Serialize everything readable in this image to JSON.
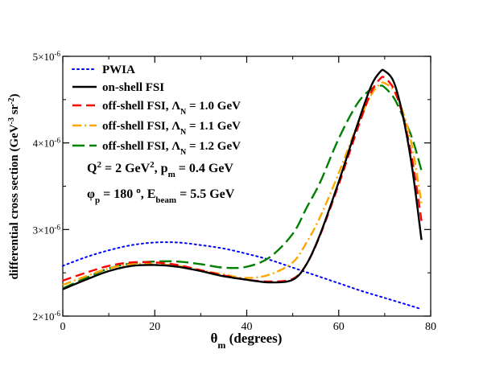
{
  "chart_data": {
    "type": "line",
    "xlabel": {
      "main": "θ",
      "sub": "m",
      "rest": " (degrees)"
    },
    "ylabel": {
      "text": "differential cross section (GeV",
      "sup1": "-3",
      "mid": " sr",
      "sup2": "-2",
      "end": ")"
    },
    "xlim": [
      0,
      80
    ],
    "ylim": [
      2e-06,
      5e-06
    ],
    "grid": false,
    "legend_position": "top-left",
    "xticks": [
      {
        "value": 0,
        "label": "0"
      },
      {
        "value": 20,
        "label": "20"
      },
      {
        "value": 40,
        "label": "40"
      },
      {
        "value": 60,
        "label": "60"
      },
      {
        "value": 80,
        "label": "80"
      }
    ],
    "yticks": [
      {
        "value": 2e-06,
        "base": "2×10",
        "exp": "-6"
      },
      {
        "value": 3e-06,
        "base": "3×10",
        "exp": "-6"
      },
      {
        "value": 4e-06,
        "base": "4×10",
        "exp": "-6"
      },
      {
        "value": 5e-06,
        "base": "5×10",
        "exp": "-6"
      }
    ],
    "annotations": [
      {
        "parts": [
          [
            "Q",
            ""
          ],
          [
            "2",
            "sup"
          ],
          [
            " = 2 GeV",
            ""
          ],
          [
            "2",
            "sup"
          ],
          [
            ", p",
            ""
          ],
          [
            "m",
            "sub"
          ],
          [
            " = 0.4 GeV",
            ""
          ]
        ]
      },
      {
        "parts": [
          [
            "φ",
            ""
          ],
          [
            "p",
            "sub"
          ],
          [
            " = 180 ",
            ""
          ],
          [
            "o",
            "sup"
          ],
          [
            ", E",
            ""
          ],
          [
            "beam",
            "sub"
          ],
          [
            " = 5.5 GeV",
            ""
          ]
        ]
      }
    ],
    "series": [
      {
        "name": [
          [
            "PWIA",
            ""
          ]
        ],
        "color": "#0000ff",
        "dash": "dotted",
        "width": 2,
        "x": [
          0,
          5,
          10,
          15,
          20,
          25,
          30,
          35,
          40,
          45,
          50,
          55,
          60,
          65,
          70,
          75,
          78
        ],
        "y": [
          2.58e-06,
          2.68e-06,
          2.76e-06,
          2.82e-06,
          2.85e-06,
          2.85e-06,
          2.82e-06,
          2.78e-06,
          2.72e-06,
          2.65e-06,
          2.56e-06,
          2.47e-06,
          2.38e-06,
          2.29e-06,
          2.21e-06,
          2.13e-06,
          2.08e-06
        ]
      },
      {
        "name": [
          [
            "on-shell FSI",
            ""
          ]
        ],
        "color": "#000000",
        "dash": "solid",
        "width": 2.4,
        "x": [
          0,
          5,
          10,
          15,
          20,
          25,
          30,
          35,
          40,
          45,
          50,
          53,
          56,
          60,
          64,
          67,
          69,
          70,
          72,
          74,
          76,
          78
        ],
        "y": [
          2.31e-06,
          2.42e-06,
          2.52e-06,
          2.58e-06,
          2.59e-06,
          2.57e-06,
          2.52e-06,
          2.46e-06,
          2.42e-06,
          2.39e-06,
          2.42e-06,
          2.6e-06,
          2.95e-06,
          3.55e-06,
          4.2e-06,
          4.65e-06,
          4.82e-06,
          4.83e-06,
          4.7e-06,
          4.3e-06,
          3.7e-06,
          2.88e-06
        ]
      },
      {
        "name": [
          [
            "off-shell FSI, Λ",
            ""
          ],
          [
            "N",
            "sub"
          ],
          [
            " = 1.0 GeV",
            ""
          ]
        ],
        "color": "#ff0000",
        "dash": "dashed",
        "width": 2.4,
        "x": [
          0,
          5,
          10,
          15,
          20,
          25,
          30,
          35,
          40,
          45,
          50,
          53,
          56,
          60,
          64,
          67,
          69,
          70,
          72,
          74,
          76,
          78
        ],
        "y": [
          2.41e-06,
          2.5e-06,
          2.58e-06,
          2.62e-06,
          2.62e-06,
          2.59e-06,
          2.53e-06,
          2.47e-06,
          2.42e-06,
          2.4e-06,
          2.43e-06,
          2.6e-06,
          2.94e-06,
          3.52e-06,
          4.15e-06,
          4.58e-06,
          4.74e-06,
          4.75e-06,
          4.62e-06,
          4.3e-06,
          3.8e-06,
          3.1e-06
        ]
      },
      {
        "name": [
          [
            "off-shell FSI, Λ",
            ""
          ],
          [
            "N",
            "sub"
          ],
          [
            " = 1.1 GeV",
            ""
          ]
        ],
        "color": "#ffa500",
        "dash": "dashdot",
        "width": 2.4,
        "x": [
          0,
          5,
          10,
          15,
          20,
          25,
          30,
          35,
          40,
          45,
          50,
          53,
          56,
          60,
          64,
          67,
          69,
          70,
          72,
          74,
          76,
          78
        ],
        "y": [
          2.36e-06,
          2.46e-06,
          2.55e-06,
          2.6e-06,
          2.6e-06,
          2.58e-06,
          2.53e-06,
          2.48e-06,
          2.44e-06,
          2.48e-06,
          2.62e-06,
          2.85e-06,
          3.15e-06,
          3.65e-06,
          4.2e-06,
          4.55e-06,
          4.68e-06,
          4.69e-06,
          4.6e-06,
          4.35e-06,
          3.95e-06,
          3.3e-06
        ]
      },
      {
        "name": [
          [
            "off-shell FSI, Λ",
            ""
          ],
          [
            "N",
            "sub"
          ],
          [
            " = 1.2 GeV",
            ""
          ]
        ],
        "color": "#008000",
        "dash": "longdash",
        "width": 2.4,
        "x": [
          0,
          5,
          10,
          15,
          20,
          25,
          30,
          35,
          40,
          45,
          50,
          53,
          56,
          60,
          64,
          67,
          69,
          70,
          72,
          74,
          76,
          78
        ],
        "y": [
          2.32e-06,
          2.44e-06,
          2.55e-06,
          2.61e-06,
          2.63e-06,
          2.63e-06,
          2.6e-06,
          2.56e-06,
          2.57e-06,
          2.68e-06,
          2.95e-06,
          3.25e-06,
          3.55e-06,
          4.05e-06,
          4.45e-06,
          4.62e-06,
          4.66e-06,
          4.64e-06,
          4.52e-06,
          4.3e-06,
          4.05e-06,
          3.68e-06
        ]
      }
    ]
  }
}
